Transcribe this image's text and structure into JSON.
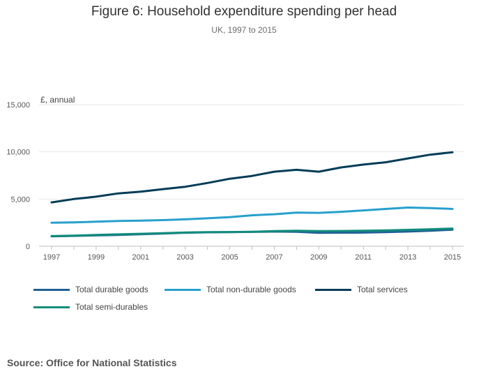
{
  "title": "Figure 6: Household expenditure spending per head",
  "subtitle": "UK, 1997 to 2015",
  "source": "Source: Office for National Statistics",
  "chart_data": {
    "type": "line",
    "ylabel": "£, annual",
    "xlabel": "",
    "ylim": [
      0,
      15000
    ],
    "y_ticks": [
      0,
      5000,
      10000,
      15000
    ],
    "y_tick_labels": [
      "0",
      "5,000",
      "10,000",
      "15,000"
    ],
    "x_ticks": [
      1997,
      1999,
      2001,
      2003,
      2005,
      2007,
      2009,
      2011,
      2013,
      2015
    ],
    "x_tick_labels": [
      "1997",
      "1999",
      "2001",
      "2003",
      "2005",
      "2007",
      "2009",
      "2011",
      "2013",
      "2015"
    ],
    "grid": true,
    "legend_position": "bottom",
    "x": [
      1997,
      1998,
      1999,
      2000,
      2001,
      2002,
      2003,
      2004,
      2005,
      2006,
      2007,
      2008,
      2009,
      2010,
      2011,
      2012,
      2013,
      2014,
      2015
    ],
    "series": [
      {
        "name": "Total durable goods",
        "color": "#206095",
        "values": [
          1050,
          1100,
          1150,
          1200,
          1280,
          1350,
          1430,
          1480,
          1500,
          1520,
          1560,
          1530,
          1420,
          1440,
          1450,
          1500,
          1560,
          1650,
          1750
        ]
      },
      {
        "name": "Total non-durable goods",
        "color": "#27a0cc",
        "values": [
          2500,
          2530,
          2600,
          2680,
          2720,
          2770,
          2850,
          2960,
          3080,
          3280,
          3390,
          3560,
          3540,
          3650,
          3800,
          3950,
          4100,
          4050,
          3950
        ]
      },
      {
        "name": "Total services",
        "color": "#003c57",
        "values": [
          4650,
          5000,
          5250,
          5600,
          5780,
          6050,
          6300,
          6700,
          7150,
          7450,
          7900,
          8100,
          7900,
          8350,
          8650,
          8900,
          9300,
          9700,
          9950
        ]
      },
      {
        "name": "Total semi-durables",
        "color": "#118c7b",
        "values": [
          1080,
          1130,
          1200,
          1260,
          1320,
          1380,
          1460,
          1490,
          1510,
          1540,
          1600,
          1640,
          1600,
          1620,
          1640,
          1680,
          1740,
          1800,
          1880
        ]
      }
    ]
  }
}
